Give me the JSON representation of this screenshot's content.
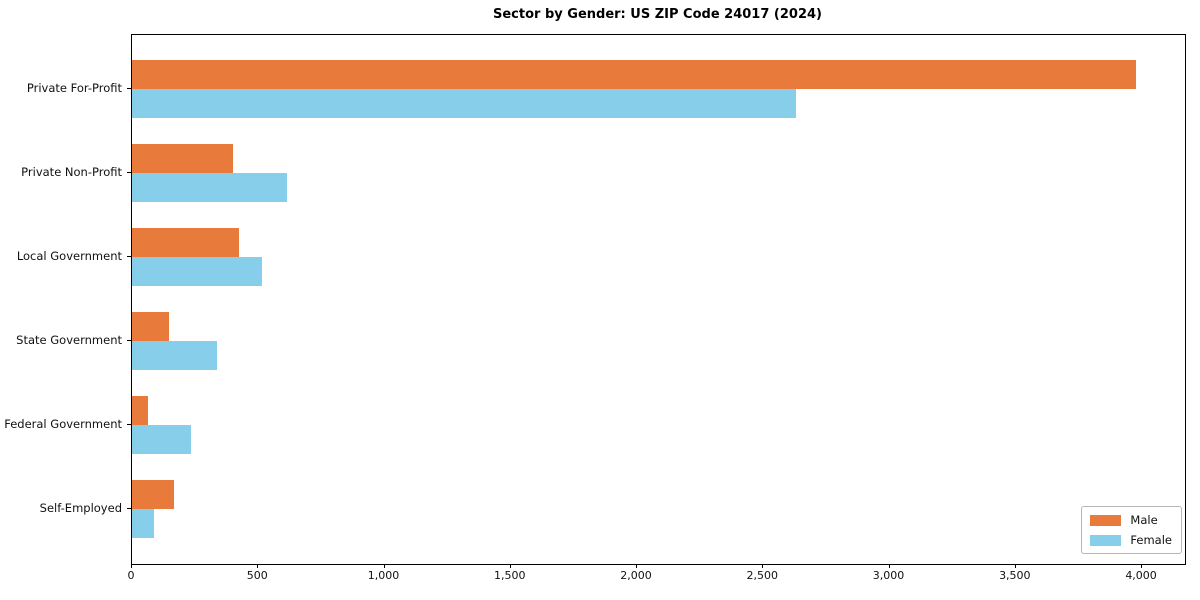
{
  "chart_data": {
    "type": "bar",
    "orientation": "horizontal",
    "title": "Sector by Gender: US ZIP Code 24017 (2024)",
    "categories": [
      "Private For-Profit",
      "Private Non-Profit",
      "Local Government",
      "State Government",
      "Federal Government",
      "Self-Employed"
    ],
    "series": [
      {
        "name": "Male",
        "color": "#e87b3c",
        "values": [
          3975,
          400,
          425,
          145,
          65,
          165
        ]
      },
      {
        "name": "Female",
        "color": "#87ceeb",
        "values": [
          2630,
          615,
          515,
          335,
          235,
          87
        ]
      }
    ],
    "xlabel": "",
    "ylabel": "",
    "xlim": [
      0,
      4170
    ],
    "xticks": [
      0,
      500,
      1000,
      1500,
      2000,
      2500,
      3000,
      3500,
      4000
    ],
    "xtick_labels": [
      "0",
      "500",
      "1,000",
      "1,500",
      "2,000",
      "2,500",
      "3,000",
      "3,500",
      "4,000"
    ],
    "grid": false,
    "legend_position": "lower right",
    "spine_color": "#000000",
    "background": "#ffffff"
  }
}
